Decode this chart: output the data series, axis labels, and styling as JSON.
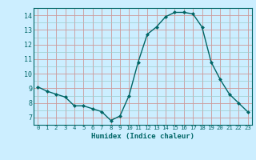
{
  "x": [
    0,
    1,
    2,
    3,
    4,
    5,
    6,
    7,
    8,
    9,
    10,
    11,
    12,
    13,
    14,
    15,
    16,
    17,
    18,
    19,
    20,
    21,
    22,
    23
  ],
  "y": [
    9.1,
    8.8,
    8.6,
    8.4,
    7.8,
    7.8,
    7.6,
    7.4,
    6.8,
    7.1,
    8.5,
    10.8,
    12.7,
    13.2,
    13.9,
    14.2,
    14.2,
    14.1,
    13.2,
    10.8,
    9.6,
    8.6,
    8.0,
    7.4
  ],
  "xlabel": "Humidex (Indice chaleur)",
  "bg_color": "#cceeff",
  "line_color": "#006666",
  "marker_color": "#006666",
  "grid_color_major": "#cc9999",
  "grid_color_minor": "#99cccc",
  "xlim": [
    -0.5,
    23.5
  ],
  "ylim": [
    6.5,
    14.5
  ],
  "yticks": [
    7,
    8,
    9,
    10,
    11,
    12,
    13,
    14
  ],
  "xticks": [
    0,
    1,
    2,
    3,
    4,
    5,
    6,
    7,
    8,
    9,
    10,
    11,
    12,
    13,
    14,
    15,
    16,
    17,
    18,
    19,
    20,
    21,
    22,
    23
  ]
}
